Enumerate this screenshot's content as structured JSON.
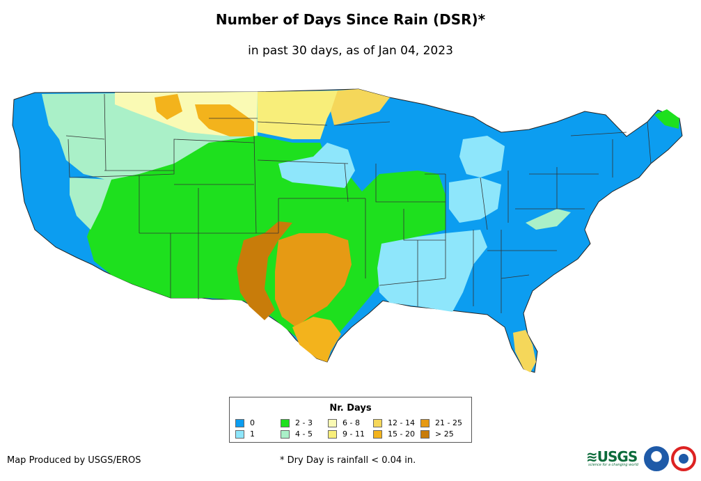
{
  "header": {
    "title": "Number of Days Since Rain (DSR)*",
    "subtitle": "in past 30 days, as of Jan 04, 2023"
  },
  "legend": {
    "title": "Nr. Days",
    "items": [
      {
        "label": "0",
        "color": "#0c9df0"
      },
      {
        "label": "1",
        "color": "#8ee6fb"
      },
      {
        "label": "2 - 3",
        "color": "#1ee01e"
      },
      {
        "label": "4 - 5",
        "color": "#aaf0c8"
      },
      {
        "label": "6 - 8",
        "color": "#fafab4"
      },
      {
        "label": "9 - 11",
        "color": "#f8ee7a"
      },
      {
        "label": "12 - 14",
        "color": "#f5d75a"
      },
      {
        "label": "15 - 20",
        "color": "#f3b31c"
      },
      {
        "label": "21 - 25",
        "color": "#e69a14"
      },
      {
        "label": "> 25",
        "color": "#c87c0a"
      }
    ]
  },
  "footer": {
    "credit": "Map Produced by USGS/EROS",
    "note": "* Dry Day is rainfall < 0.04 in."
  },
  "logos": {
    "usgs": "USGS",
    "usgs_tagline": "science for a changing world",
    "noaa": "noaa-logo",
    "nws": "nws-logo"
  }
}
